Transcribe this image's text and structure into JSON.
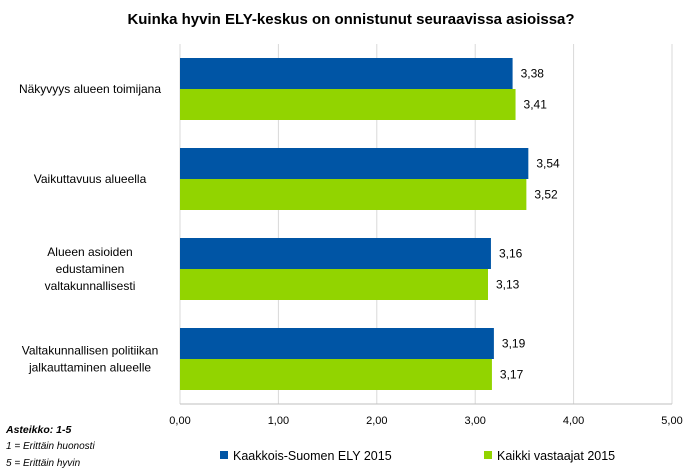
{
  "chart_data": {
    "type": "bar",
    "orientation": "horizontal",
    "title": "Kuinka hyvin ELY-keskus on onnistunut seuraavissa asioissa?",
    "categories": [
      [
        "Näkyvyys alueen toimijana"
      ],
      [
        "Vaikuttavuus alueella"
      ],
      [
        "Alueen asioiden",
        "edustaminen",
        "valtakunnallisesti"
      ],
      [
        "Valtakunnallisen politiikan",
        "jalkauttaminen alueelle"
      ]
    ],
    "series": [
      {
        "name": "Kaakkois-Suomen ELY 2015",
        "color": "#0055A5",
        "values": [
          3.38,
          3.54,
          3.16,
          3.19
        ],
        "labels": [
          "3,38",
          "3,54",
          "3,16",
          "3,19"
        ]
      },
      {
        "name": "Kaikki vastaajat 2015",
        "color": "#92D400",
        "values": [
          3.41,
          3.52,
          3.13,
          3.17
        ],
        "labels": [
          "3,41",
          "3,52",
          "3,13",
          "3,17"
        ]
      }
    ],
    "xlim": [
      0,
      5
    ],
    "xticks": [
      0,
      1,
      2,
      3,
      4,
      5
    ],
    "xtick_labels": [
      "0,00",
      "1,00",
      "2,00",
      "3,00",
      "4,00",
      "5,00"
    ],
    "grid": true,
    "legend_position": "bottom"
  },
  "notes": {
    "scale_title": "Asteikko: 1-5",
    "line1": "1 = Erittäin huonosti",
    "line2": "5 = Erittäin hyvin"
  }
}
